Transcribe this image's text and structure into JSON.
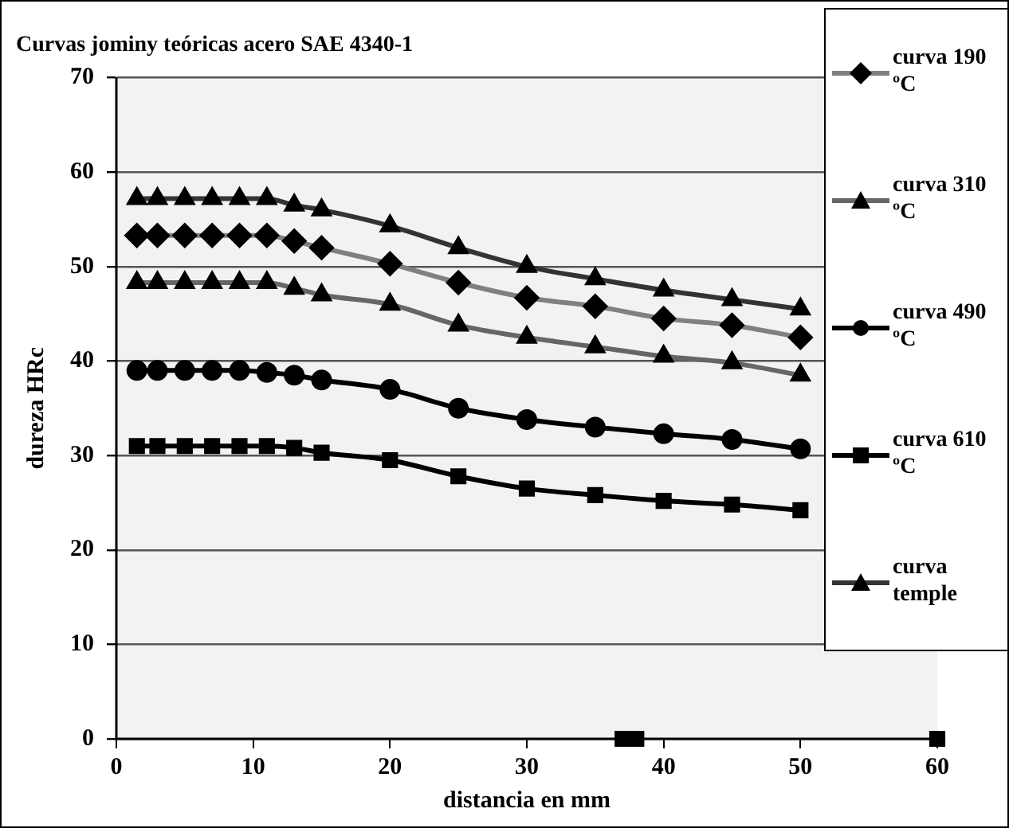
{
  "chart_data": {
    "type": "line",
    "title": "Curvas jominy teóricas acero SAE 4340-1",
    "xlabel": "distancia en mm",
    "ylabel": "dureza HRc",
    "x": [
      1.5,
      3,
      5,
      7,
      9,
      11,
      13,
      15,
      20,
      25,
      30,
      35,
      40,
      45,
      50
    ],
    "series": [
      {
        "name": "curva 190 ºC",
        "color": "#808080",
        "marker": "diamond",
        "values": [
          53.3,
          53.3,
          53.3,
          53.3,
          53.3,
          53.3,
          52.7,
          52,
          50.3,
          48.3,
          46.7,
          45.8,
          44.5,
          43.8,
          42.5
        ]
      },
      {
        "name": "curva 310 ºC",
        "color": "#666666",
        "marker": "triangle",
        "values": [
          48.3,
          48.3,
          48.3,
          48.3,
          48.3,
          48.3,
          47.7,
          47,
          46,
          43.8,
          42.5,
          41.5,
          40.5,
          39.8,
          38.5
        ]
      },
      {
        "name": "curva 490 ºC",
        "color": "#000000",
        "marker": "circle",
        "values": [
          39,
          39,
          39,
          39,
          39,
          38.8,
          38.5,
          38,
          37,
          35,
          33.8,
          33,
          32.3,
          31.7,
          30.7
        ]
      },
      {
        "name": "curva 610 ºC",
        "color": "#000000",
        "marker": "square",
        "values": [
          31,
          31,
          31,
          31,
          31,
          31,
          30.8,
          30.3,
          29.5,
          27.8,
          26.5,
          25.8,
          25.2,
          24.8,
          24.2
        ]
      },
      {
        "name": "curva temple",
        "color": "#333333",
        "marker": "triangle",
        "values": [
          57.2,
          57.2,
          57.2,
          57.2,
          57.2,
          57.2,
          56.5,
          56,
          54.3,
          52,
          50,
          48.7,
          47.5,
          46.5,
          45.5
        ]
      },
      {
        "type": "scatter",
        "color": "#000000",
        "marker": "square",
        "x": [
          37,
          38,
          60
        ],
        "values": [
          0,
          0,
          0
        ]
      }
    ],
    "xlim": [
      0,
      60
    ],
    "xticks": [
      0,
      10,
      20,
      30,
      40,
      50,
      60
    ],
    "ylim": [
      0,
      70
    ],
    "yticks": [
      0,
      10,
      20,
      30,
      40,
      50,
      60,
      70
    ],
    "grid": "y",
    "legend": "right"
  }
}
